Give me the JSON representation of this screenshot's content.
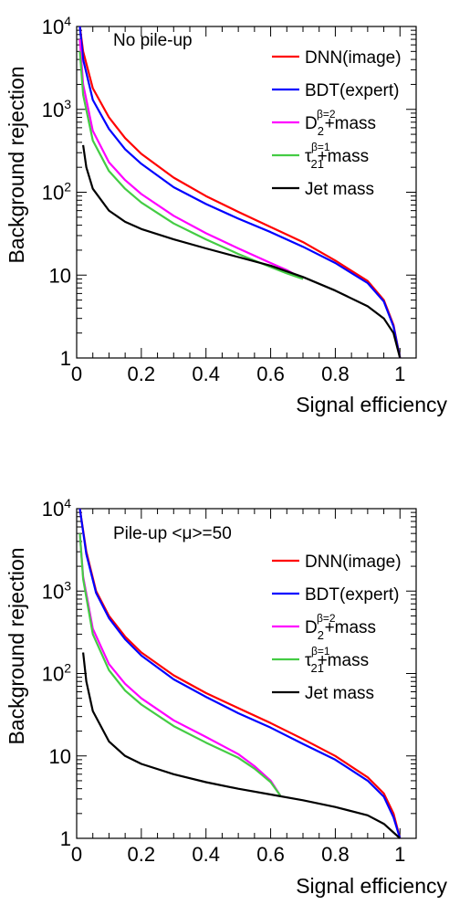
{
  "chart_data": [
    {
      "type": "line",
      "annotation": "No pile-up",
      "xlabel": "Signal efficiency",
      "ylabel": "Background rejection",
      "xlim": [
        0,
        1.05
      ],
      "ylim": [
        1,
        10000
      ],
      "yscale": "log",
      "x_ticks": [
        "0",
        "0.2",
        "0.4",
        "0.6",
        "0.8",
        "1"
      ],
      "y_ticks": [
        "1",
        "10",
        "10²",
        "10³",
        "10⁴"
      ],
      "legend_position": "top-right",
      "series": [
        {
          "name": "DNN(image)",
          "color": "#ff0000",
          "points": [
            [
              0.01,
              10000
            ],
            [
              0.02,
              5000
            ],
            [
              0.05,
              1800
            ],
            [
              0.1,
              800
            ],
            [
              0.15,
              450
            ],
            [
              0.2,
              290
            ],
            [
              0.3,
              150
            ],
            [
              0.4,
              90
            ],
            [
              0.5,
              58
            ],
            [
              0.6,
              38
            ],
            [
              0.7,
              25
            ],
            [
              0.8,
              15
            ],
            [
              0.9,
              8.5
            ],
            [
              0.95,
              5
            ],
            [
              0.98,
              2.5
            ],
            [
              1.0,
              1
            ]
          ]
        },
        {
          "name": "BDT(expert)",
          "color": "#0000ff",
          "points": [
            [
              0.01,
              10000
            ],
            [
              0.02,
              4000
            ],
            [
              0.05,
              1300
            ],
            [
              0.1,
              580
            ],
            [
              0.15,
              330
            ],
            [
              0.2,
              220
            ],
            [
              0.3,
              115
            ],
            [
              0.4,
              72
            ],
            [
              0.5,
              48
            ],
            [
              0.6,
              33
            ],
            [
              0.7,
              22
            ],
            [
              0.8,
              14
            ],
            [
              0.9,
              8
            ],
            [
              0.95,
              4.8
            ],
            [
              0.98,
              2.4
            ],
            [
              1.0,
              1
            ]
          ]
        },
        {
          "name": "D2(β=2)+mass",
          "color": "#ff00ff",
          "points": [
            [
              0.01,
              7000
            ],
            [
              0.02,
              2000
            ],
            [
              0.05,
              550
            ],
            [
              0.1,
              230
            ],
            [
              0.15,
              140
            ],
            [
              0.2,
              95
            ],
            [
              0.3,
              52
            ],
            [
              0.4,
              32
            ],
            [
              0.5,
              21
            ],
            [
              0.6,
              14
            ],
            [
              0.65,
              11.5
            ],
            [
              0.7,
              9
            ]
          ]
        },
        {
          "name": "τ21(β=1)+mass",
          "color": "#44cc44",
          "points": [
            [
              0.01,
              5000
            ],
            [
              0.02,
              1500
            ],
            [
              0.05,
              420
            ],
            [
              0.1,
              180
            ],
            [
              0.15,
              110
            ],
            [
              0.2,
              75
            ],
            [
              0.3,
              42
            ],
            [
              0.4,
              27
            ],
            [
              0.5,
              18
            ],
            [
              0.6,
              12.5
            ],
            [
              0.65,
              10.5
            ],
            [
              0.7,
              9
            ]
          ]
        },
        {
          "name": "Jet mass",
          "color": "#000000",
          "points": [
            [
              0.02,
              370
            ],
            [
              0.03,
              200
            ],
            [
              0.05,
              110
            ],
            [
              0.1,
              60
            ],
            [
              0.15,
              44
            ],
            [
              0.2,
              36
            ],
            [
              0.3,
              27
            ],
            [
              0.4,
              21
            ],
            [
              0.5,
              16.5
            ],
            [
              0.6,
              13
            ],
            [
              0.7,
              9.5
            ],
            [
              0.8,
              6.5
            ],
            [
              0.9,
              4.2
            ],
            [
              0.95,
              3
            ],
            [
              0.98,
              2
            ],
            [
              1.0,
              1
            ]
          ]
        }
      ]
    },
    {
      "type": "line",
      "annotation": "Pile-up <μ>=50",
      "xlabel": "Signal efficiency",
      "ylabel": "Background rejection",
      "xlim": [
        0,
        1.05
      ],
      "ylim": [
        1,
        10000
      ],
      "yscale": "log",
      "x_ticks": [
        "0",
        "0.2",
        "0.4",
        "0.6",
        "0.8",
        "1"
      ],
      "y_ticks": [
        "1",
        "10",
        "10²",
        "10³",
        "10⁴"
      ],
      "legend_position": "top-right",
      "series": [
        {
          "name": "DNN(image)",
          "color": "#ff0000",
          "points": [
            [
              0.01,
              10000
            ],
            [
              0.03,
              3000
            ],
            [
              0.06,
              1000
            ],
            [
              0.1,
              500
            ],
            [
              0.15,
              280
            ],
            [
              0.2,
              180
            ],
            [
              0.3,
              95
            ],
            [
              0.4,
              58
            ],
            [
              0.5,
              38
            ],
            [
              0.6,
              25
            ],
            [
              0.7,
              16
            ],
            [
              0.8,
              10
            ],
            [
              0.9,
              5.5
            ],
            [
              0.95,
              3.5
            ],
            [
              0.98,
              2
            ],
            [
              1.0,
              1
            ]
          ]
        },
        {
          "name": "BDT(expert)",
          "color": "#0000ff",
          "points": [
            [
              0.01,
              10000
            ],
            [
              0.03,
              2800
            ],
            [
              0.06,
              950
            ],
            [
              0.1,
              470
            ],
            [
              0.15,
              260
            ],
            [
              0.2,
              165
            ],
            [
              0.3,
              85
            ],
            [
              0.4,
              52
            ],
            [
              0.5,
              33
            ],
            [
              0.6,
              22
            ],
            [
              0.7,
              14
            ],
            [
              0.8,
              9
            ],
            [
              0.9,
              5
            ],
            [
              0.95,
              3.2
            ],
            [
              0.98,
              1.8
            ],
            [
              1.0,
              1
            ]
          ]
        },
        {
          "name": "D2(β=2)+mass",
          "color": "#ff00ff",
          "points": [
            [
              0.01,
              5000
            ],
            [
              0.02,
              1500
            ],
            [
              0.05,
              350
            ],
            [
              0.1,
              130
            ],
            [
              0.15,
              75
            ],
            [
              0.2,
              50
            ],
            [
              0.3,
              27
            ],
            [
              0.4,
              17
            ],
            [
              0.5,
              10.5
            ],
            [
              0.55,
              7.5
            ],
            [
              0.6,
              5
            ],
            [
              0.63,
              3.3
            ]
          ]
        },
        {
          "name": "τ21(β=1)+mass",
          "color": "#44cc44",
          "points": [
            [
              0.01,
              5000
            ],
            [
              0.02,
              1400
            ],
            [
              0.05,
              300
            ],
            [
              0.1,
              110
            ],
            [
              0.15,
              62
            ],
            [
              0.2,
              42
            ],
            [
              0.3,
              23
            ],
            [
              0.4,
              14.5
            ],
            [
              0.5,
              9.5
            ],
            [
              0.55,
              7
            ],
            [
              0.6,
              4.8
            ],
            [
              0.63,
              3.3
            ]
          ]
        },
        {
          "name": "Jet mass",
          "color": "#000000",
          "points": [
            [
              0.02,
              180
            ],
            [
              0.03,
              80
            ],
            [
              0.05,
              35
            ],
            [
              0.1,
              15
            ],
            [
              0.15,
              10
            ],
            [
              0.2,
              8
            ],
            [
              0.3,
              6
            ],
            [
              0.4,
              4.8
            ],
            [
              0.5,
              4
            ],
            [
              0.6,
              3.4
            ],
            [
              0.7,
              2.9
            ],
            [
              0.8,
              2.4
            ],
            [
              0.9,
              1.9
            ],
            [
              0.95,
              1.5
            ],
            [
              1.0,
              1
            ]
          ]
        }
      ]
    }
  ]
}
